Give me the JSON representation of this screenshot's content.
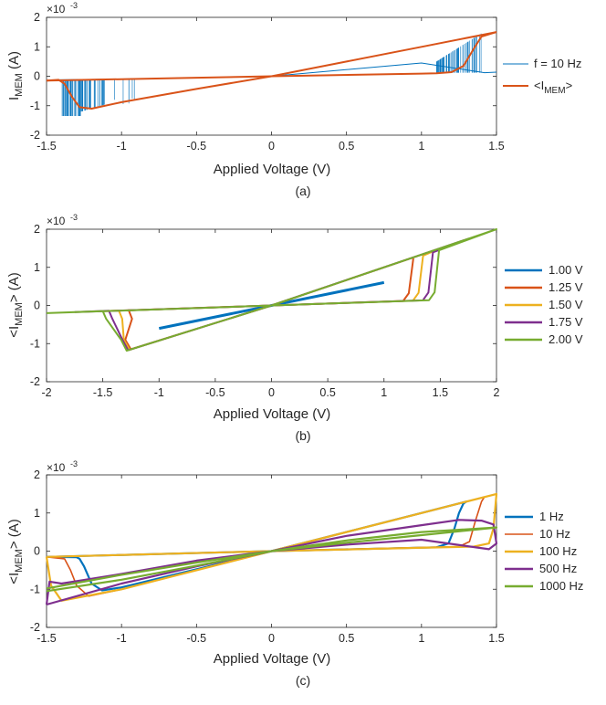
{
  "chart_data": [
    {
      "type": "line",
      "panel_label": "(a)",
      "xlabel": "Applied Voltage (V)",
      "ylabel": {
        "main": "I",
        "sub": "MEM",
        "unit": " (A)"
      },
      "exponent_label": {
        "base": "×10",
        "power": "-3"
      },
      "xlim": [
        -1.5,
        1.5
      ],
      "ylim": [
        -2,
        2
      ],
      "xticks": [
        -1.5,
        -1,
        -0.5,
        0,
        0.5,
        1,
        1.5
      ],
      "xtick_labels": [
        "-1.5",
        "-1",
        "-0.5",
        "0",
        "0.5",
        "1",
        "1.5"
      ],
      "yticks": [
        -2,
        -1,
        0,
        1,
        2
      ],
      "ytick_labels": [
        "-2",
        "-1",
        "0",
        "1",
        "2"
      ],
      "legend_position": "right",
      "series": [
        {
          "name": "f = 10 Hz",
          "color": "#0072BD",
          "style": "noisy-band",
          "main": [
            [
              -1.42,
              -0.12
            ],
            [
              -1.2,
              -0.11
            ],
            [
              -0.6,
              -0.06
            ],
            [
              0,
              0
            ],
            [
              1.0,
              0.45
            ],
            [
              1.42,
              0.12
            ],
            [
              1.5,
              0.14
            ]
          ]
        },
        {
          "name": "<I",
          "sub": "MEM",
          "suffix": ">",
          "color": "#D95319",
          "loops": [
            [
              [
                -1.5,
                -0.15
              ],
              [
                -0.5,
                -0.05
              ],
              [
                0,
                0
              ],
              [
                1.0,
                0.09
              ],
              [
                1.1,
                0.1
              ],
              [
                1.2,
                0.14
              ],
              [
                1.28,
                0.35
              ],
              [
                1.35,
                0.95
              ],
              [
                1.4,
                1.35
              ],
              [
                1.5,
                1.5
              ]
            ],
            [
              [
                1.5,
                1.5
              ],
              [
                1.0,
                1.0
              ],
              [
                0.5,
                0.5
              ],
              [
                0,
                0
              ],
              [
                -0.5,
                -0.43
              ],
              [
                -1.0,
                -0.88
              ],
              [
                -1.2,
                -1.1
              ],
              [
                -1.28,
                -1.05
              ],
              [
                -1.33,
                -0.7
              ],
              [
                -1.38,
                -0.25
              ],
              [
                -1.42,
                -0.12
              ],
              [
                -1.5,
                -0.15
              ]
            ]
          ]
        }
      ]
    },
    {
      "type": "line",
      "panel_label": "(b)",
      "xlabel": "Applied Voltage (V)",
      "ylabel": {
        "main": "<I",
        "sub": "MEM",
        "unit": "> (A)"
      },
      "exponent_label": {
        "base": "×10",
        "power": "-3"
      },
      "xlim": [
        -2,
        2
      ],
      "ylim": [
        -2,
        2
      ],
      "xticks": [
        -2,
        -1.5,
        -1,
        -0.5,
        0,
        0.5,
        1,
        1.5,
        2
      ],
      "xtick_labels": [
        "-2",
        "-1.5",
        "-1",
        "-0.5",
        "0",
        "0.5",
        "1",
        "1.5",
        "2"
      ],
      "yticks": [
        -2,
        -1,
        0,
        1,
        2
      ],
      "ytick_labels": [
        "-2",
        "-1",
        "0",
        "1",
        "2"
      ],
      "legend_position": "right",
      "series": [
        {
          "name": "1.00 V",
          "color": "#0072BD",
          "amplitude": 1.0
        },
        {
          "name": "1.25 V",
          "color": "#D95319",
          "amplitude": 1.25
        },
        {
          "name": "1.50 V",
          "color": "#EDB120",
          "amplitude": 1.5
        },
        {
          "name": "1.75 V",
          "color": "#7E2F8E",
          "amplitude": 1.75
        },
        {
          "name": "2.00 V",
          "color": "#77AC30",
          "amplitude": 2.0
        }
      ]
    },
    {
      "type": "line",
      "panel_label": "(c)",
      "xlabel": "Applied Voltage (V)",
      "ylabel": {
        "main": "<I",
        "sub": "MEM",
        "unit": "> (A)"
      },
      "exponent_label": {
        "base": "×10",
        "power": "-3"
      },
      "xlim": [
        -1.5,
        1.5
      ],
      "ylim": [
        -2,
        2
      ],
      "xticks": [
        -1.5,
        -1,
        -0.5,
        0,
        0.5,
        1,
        1.5
      ],
      "xtick_labels": [
        "-1.5",
        "-1",
        "-0.5",
        "0",
        "0.5",
        "1",
        "1.5"
      ],
      "yticks": [
        -2,
        -1,
        0,
        1,
        2
      ],
      "ytick_labels": [
        "-2",
        "-1",
        "0",
        "1",
        "2"
      ],
      "legend_position": "right",
      "series": [
        {
          "name": "1 Hz",
          "color": "#0072BD",
          "loops": [
            [
              [
                -1.5,
                -0.15
              ],
              [
                0,
                0
              ],
              [
                1.1,
                0.1
              ],
              [
                1.18,
                0.2
              ],
              [
                1.22,
                0.6
              ],
              [
                1.25,
                1.0
              ],
              [
                1.28,
                1.25
              ],
              [
                1.3,
                1.3
              ],
              [
                1.1,
                1.1
              ],
              [
                0,
                0
              ],
              [
                -1.0,
                -0.95
              ],
              [
                -1.13,
                -1.03
              ],
              [
                -1.2,
                -0.85
              ],
              [
                -1.25,
                -0.4
              ],
              [
                -1.28,
                -0.2
              ],
              [
                -1.3,
                -0.16
              ],
              [
                -1.5,
                -0.15
              ]
            ]
          ]
        },
        {
          "name": "10 Hz",
          "color": "#D95319",
          "loops": [
            [
              [
                -1.5,
                -0.15
              ],
              [
                0,
                0
              ],
              [
                1.25,
                0.12
              ],
              [
                1.32,
                0.25
              ],
              [
                1.36,
                0.8
              ],
              [
                1.4,
                1.3
              ],
              [
                1.42,
                1.42
              ],
              [
                1.0,
                1.0
              ],
              [
                0,
                0
              ],
              [
                -1.0,
                -1.0
              ],
              [
                -1.22,
                -1.18
              ],
              [
                -1.3,
                -0.9
              ],
              [
                -1.34,
                -0.5
              ],
              [
                -1.38,
                -0.2
              ],
              [
                -1.5,
                -0.15
              ]
            ]
          ]
        },
        {
          "name": "100 Hz",
          "color": "#EDB120",
          "loops": [
            [
              [
                -1.5,
                -0.15
              ],
              [
                0,
                0
              ],
              [
                1.35,
                0.12
              ],
              [
                1.45,
                0.2
              ],
              [
                1.48,
                0.6
              ],
              [
                1.5,
                1.5
              ],
              [
                1.0,
                1.0
              ],
              [
                0,
                0
              ],
              [
                -1.0,
                -1.0
              ],
              [
                -1.4,
                -1.3
              ],
              [
                -1.47,
                -0.9
              ],
              [
                -1.5,
                -0.15
              ]
            ]
          ]
        },
        {
          "name": "500 Hz",
          "color": "#7E2F8E",
          "loops": [
            [
              [
                -1.5,
                -1.4
              ],
              [
                -1.0,
                -0.85
              ],
              [
                -0.5,
                -0.4
              ],
              [
                0,
                0
              ],
              [
                0.5,
                0.4
              ],
              [
                1.0,
                0.68
              ],
              [
                1.25,
                0.82
              ],
              [
                1.4,
                0.8
              ],
              [
                1.48,
                0.7
              ],
              [
                1.5,
                0.2
              ],
              [
                1.45,
                0.05
              ],
              [
                1.0,
                0.3
              ],
              [
                0.5,
                0.17
              ],
              [
                0,
                0
              ],
              [
                -0.5,
                -0.25
              ],
              [
                -1.0,
                -0.6
              ],
              [
                -1.4,
                -0.85
              ],
              [
                -1.48,
                -0.8
              ],
              [
                -1.5,
                -1.4
              ]
            ]
          ]
        },
        {
          "name": "1000 Hz",
          "color": "#77AC30",
          "loops": [
            [
              [
                -1.5,
                -1.05
              ],
              [
                -1.0,
                -0.75
              ],
              [
                -0.5,
                -0.38
              ],
              [
                0,
                0
              ],
              [
                0.5,
                0.28
              ],
              [
                1.0,
                0.5
              ],
              [
                1.5,
                0.62
              ],
              [
                1.0,
                0.42
              ],
              [
                0.5,
                0.22
              ],
              [
                0,
                0
              ],
              [
                -0.5,
                -0.3
              ],
              [
                -1.0,
                -0.62
              ],
              [
                -1.5,
                -0.98
              ]
            ]
          ]
        }
      ]
    }
  ]
}
